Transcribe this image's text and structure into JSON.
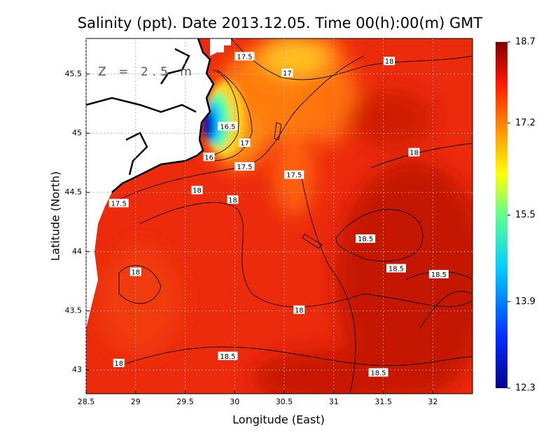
{
  "chart_data": {
    "type": "contour",
    "title": "Salinity (ppt). Date 2013.12.05. Time 00(h):00(m) GMT",
    "annotation": "Z = 2.5 m",
    "x_label": "Longitude (East)",
    "y_label": "Latitude (North)",
    "xlim": [
      28.5,
      32.4
    ],
    "xticks": [
      28.5,
      29,
      29.5,
      30,
      30.5,
      31,
      31.5,
      32
    ],
    "ylim": [
      42.8,
      45.8
    ],
    "yticks": [
      43,
      43.5,
      44,
      44.5,
      45,
      45.5
    ],
    "grid": true,
    "colorbar": {
      "lim": [
        12.3,
        18.7
      ],
      "ticks": [
        12.3,
        13.9,
        15.5,
        17.2,
        18.7
      ]
    },
    "contour_labels": [
      {
        "lon": 30.1,
        "lat": 45.65,
        "value": 17.5
      },
      {
        "lon": 30.53,
        "lat": 45.51,
        "value": 17
      },
      {
        "lon": 31.56,
        "lat": 45.61,
        "value": 18
      },
      {
        "lon": 29.93,
        "lat": 45.06,
        "value": 16.5
      },
      {
        "lon": 30.1,
        "lat": 44.92,
        "value": 17
      },
      {
        "lon": 29.74,
        "lat": 44.8,
        "value": 16
      },
      {
        "lon": 30.1,
        "lat": 44.72,
        "value": 17.5
      },
      {
        "lon": 30.6,
        "lat": 44.65,
        "value": 17.5
      },
      {
        "lon": 31.81,
        "lat": 44.84,
        "value": 18
      },
      {
        "lon": 29.62,
        "lat": 44.52,
        "value": 18
      },
      {
        "lon": 29.98,
        "lat": 44.44,
        "value": 18
      },
      {
        "lon": 28.83,
        "lat": 44.41,
        "value": 17.5
      },
      {
        "lon": 31.32,
        "lat": 44.11,
        "value": 18.5
      },
      {
        "lon": 31.63,
        "lat": 43.86,
        "value": 18.5
      },
      {
        "lon": 32.06,
        "lat": 43.81,
        "value": 18.5
      },
      {
        "lon": 29.0,
        "lat": 43.83,
        "value": 18
      },
      {
        "lon": 30.65,
        "lat": 43.51,
        "value": 18
      },
      {
        "lon": 29.93,
        "lat": 43.12,
        "value": 18.5
      },
      {
        "lon": 28.83,
        "lat": 43.06,
        "value": 18
      },
      {
        "lon": 31.45,
        "lat": 42.98,
        "value": 18.5
      }
    ]
  }
}
